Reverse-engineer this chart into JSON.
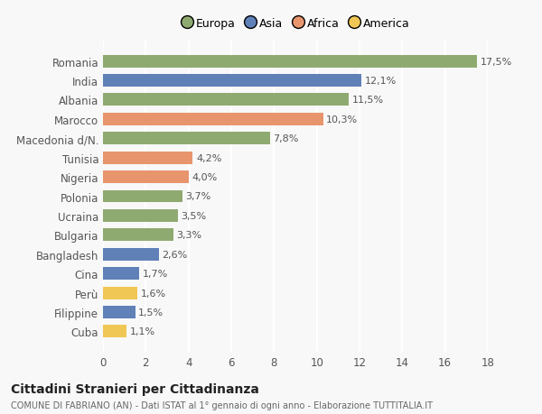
{
  "categories": [
    "Cuba",
    "Filippine",
    "Perù",
    "Cina",
    "Bangladesh",
    "Bulgaria",
    "Ucraina",
    "Polonia",
    "Nigeria",
    "Tunisia",
    "Macedonia d/N.",
    "Marocco",
    "Albania",
    "India",
    "Romania"
  ],
  "values": [
    1.1,
    1.5,
    1.6,
    1.7,
    2.6,
    3.3,
    3.5,
    3.7,
    4.0,
    4.2,
    7.8,
    10.3,
    11.5,
    12.1,
    17.5
  ],
  "labels": [
    "1,1%",
    "1,5%",
    "1,6%",
    "1,7%",
    "2,6%",
    "3,3%",
    "3,5%",
    "3,7%",
    "4,0%",
    "4,2%",
    "7,8%",
    "10,3%",
    "11,5%",
    "12,1%",
    "17,5%"
  ],
  "colors": [
    "#f0c755",
    "#6080b8",
    "#f0c755",
    "#6080b8",
    "#6080b8",
    "#8faa70",
    "#8faa70",
    "#8faa70",
    "#e8956e",
    "#e8956e",
    "#8faa70",
    "#e8956e",
    "#8faa70",
    "#6080b8",
    "#8faa70"
  ],
  "legend_labels": [
    "Europa",
    "Asia",
    "Africa",
    "America"
  ],
  "legend_colors": [
    "#8faa70",
    "#6080b8",
    "#e8956e",
    "#f0c755"
  ],
  "title": "Cittadini Stranieri per Cittadinanza",
  "subtitle": "COMUNE DI FABRIANO (AN) - Dati ISTAT al 1° gennaio di ogni anno - Elaborazione TUTTITALIA.IT",
  "xlim": [
    0,
    18
  ],
  "xticks": [
    0,
    2,
    4,
    6,
    8,
    10,
    12,
    14,
    16,
    18
  ],
  "background_color": "#f8f8f8",
  "bar_height": 0.65,
  "grid_color": "#ffffff"
}
